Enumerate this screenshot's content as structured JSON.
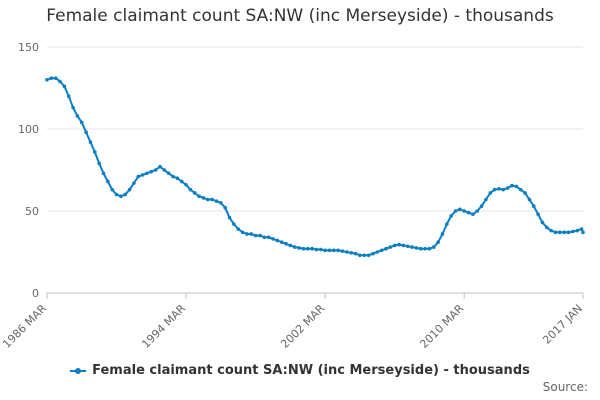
{
  "title": "Female claimant count SA:NW (inc Merseyside) - thousands",
  "source_label": "Source:",
  "colors": {
    "series": "#0a7fc1",
    "grid": "#e6e6e6",
    "axis": "#c0c0c0",
    "text": "#666666"
  },
  "chart_data": {
    "type": "line",
    "title": "Female claimant count SA:NW (inc Merseyside) - thousands",
    "xlabel": "",
    "ylabel": "",
    "ylim": [
      0,
      150
    ],
    "yticks": [
      0,
      50,
      100,
      150
    ],
    "xlim": [
      "1986-03",
      "2017-01"
    ],
    "xtick_labels": [
      "1986 MAR",
      "1994 MAR",
      "2002 MAR",
      "2010 MAR",
      "2017 JAN"
    ],
    "xtick_dates": [
      "1986-03",
      "1994-03",
      "2002-03",
      "2010-03",
      "2017-01"
    ],
    "grid": true,
    "legend": "bottom",
    "series": [
      {
        "name": "Female claimant count SA:NW (inc Merseyside) - thousands",
        "points": [
          [
            "1986-03",
            130
          ],
          [
            "1986-06",
            131
          ],
          [
            "1986-09",
            131
          ],
          [
            "1986-12",
            129
          ],
          [
            "1987-03",
            126
          ],
          [
            "1987-06",
            120
          ],
          [
            "1987-09",
            113
          ],
          [
            "1987-12",
            108
          ],
          [
            "1988-03",
            104
          ],
          [
            "1988-06",
            98
          ],
          [
            "1988-09",
            92
          ],
          [
            "1988-12",
            86
          ],
          [
            "1989-03",
            79
          ],
          [
            "1989-06",
            73
          ],
          [
            "1989-09",
            68
          ],
          [
            "1989-12",
            63
          ],
          [
            "1990-03",
            60
          ],
          [
            "1990-06",
            59
          ],
          [
            "1990-09",
            60
          ],
          [
            "1990-12",
            63
          ],
          [
            "1991-03",
            67
          ],
          [
            "1991-06",
            71
          ],
          [
            "1991-09",
            72
          ],
          [
            "1991-12",
            73
          ],
          [
            "1992-03",
            74
          ],
          [
            "1992-06",
            75
          ],
          [
            "1992-09",
            77
          ],
          [
            "1992-12",
            75
          ],
          [
            "1993-03",
            73
          ],
          [
            "1993-06",
            71
          ],
          [
            "1993-09",
            70
          ],
          [
            "1993-12",
            68
          ],
          [
            "1994-03",
            66
          ],
          [
            "1994-06",
            63
          ],
          [
            "1994-09",
            61
          ],
          [
            "1994-12",
            59
          ],
          [
            "1995-03",
            58
          ],
          [
            "1995-06",
            57
          ],
          [
            "1995-09",
            57
          ],
          [
            "1995-12",
            56
          ],
          [
            "1996-03",
            55
          ],
          [
            "1996-06",
            52
          ],
          [
            "1996-09",
            46
          ],
          [
            "1996-12",
            42
          ],
          [
            "1997-03",
            39
          ],
          [
            "1997-06",
            37
          ],
          [
            "1997-09",
            36
          ],
          [
            "1997-12",
            36
          ],
          [
            "1998-03",
            35
          ],
          [
            "1998-06",
            35
          ],
          [
            "1998-09",
            34
          ],
          [
            "1998-12",
            34
          ],
          [
            "1999-03",
            33
          ],
          [
            "1999-06",
            32
          ],
          [
            "1999-09",
            31
          ],
          [
            "1999-12",
            30
          ],
          [
            "2000-03",
            29
          ],
          [
            "2000-06",
            28
          ],
          [
            "2000-09",
            27.5
          ],
          [
            "2000-12",
            27
          ],
          [
            "2001-03",
            27
          ],
          [
            "2001-06",
            27
          ],
          [
            "2001-09",
            26.5
          ],
          [
            "2001-12",
            26.5
          ],
          [
            "2002-03",
            26
          ],
          [
            "2002-06",
            26
          ],
          [
            "2002-09",
            26
          ],
          [
            "2002-12",
            26
          ],
          [
            "2003-03",
            25.5
          ],
          [
            "2003-06",
            25
          ],
          [
            "2003-09",
            24.5
          ],
          [
            "2003-12",
            24
          ],
          [
            "2004-03",
            23
          ],
          [
            "2004-06",
            23
          ],
          [
            "2004-09",
            23
          ],
          [
            "2004-12",
            24
          ],
          [
            "2005-03",
            25
          ],
          [
            "2005-06",
            26
          ],
          [
            "2005-09",
            27
          ],
          [
            "2005-12",
            28
          ],
          [
            "2006-03",
            29
          ],
          [
            "2006-06",
            29.5
          ],
          [
            "2006-09",
            29
          ],
          [
            "2006-12",
            28.5
          ],
          [
            "2007-03",
            28
          ],
          [
            "2007-06",
            27.5
          ],
          [
            "2007-09",
            27
          ],
          [
            "2007-12",
            27
          ],
          [
            "2008-03",
            27
          ],
          [
            "2008-06",
            28
          ],
          [
            "2008-09",
            31
          ],
          [
            "2008-12",
            36
          ],
          [
            "2009-03",
            42
          ],
          [
            "2009-06",
            47
          ],
          [
            "2009-09",
            50
          ],
          [
            "2009-12",
            51
          ],
          [
            "2010-03",
            50
          ],
          [
            "2010-06",
            49
          ],
          [
            "2010-09",
            48
          ],
          [
            "2010-12",
            50
          ],
          [
            "2011-03",
            53
          ],
          [
            "2011-06",
            57
          ],
          [
            "2011-09",
            61
          ],
          [
            "2011-12",
            63
          ],
          [
            "2012-03",
            63.5
          ],
          [
            "2012-06",
            63
          ],
          [
            "2012-09",
            64
          ],
          [
            "2012-12",
            65.5
          ],
          [
            "2013-03",
            65
          ],
          [
            "2013-06",
            63
          ],
          [
            "2013-09",
            61
          ],
          [
            "2013-12",
            57
          ],
          [
            "2014-03",
            53
          ],
          [
            "2014-06",
            48
          ],
          [
            "2014-09",
            43
          ],
          [
            "2014-12",
            40
          ],
          [
            "2015-03",
            38
          ],
          [
            "2015-06",
            37
          ],
          [
            "2015-09",
            37
          ],
          [
            "2015-12",
            37
          ],
          [
            "2016-03",
            37
          ],
          [
            "2016-06",
            37.5
          ],
          [
            "2016-09",
            38
          ],
          [
            "2016-12",
            39
          ],
          [
            "2017-01",
            37
          ]
        ]
      }
    ]
  }
}
